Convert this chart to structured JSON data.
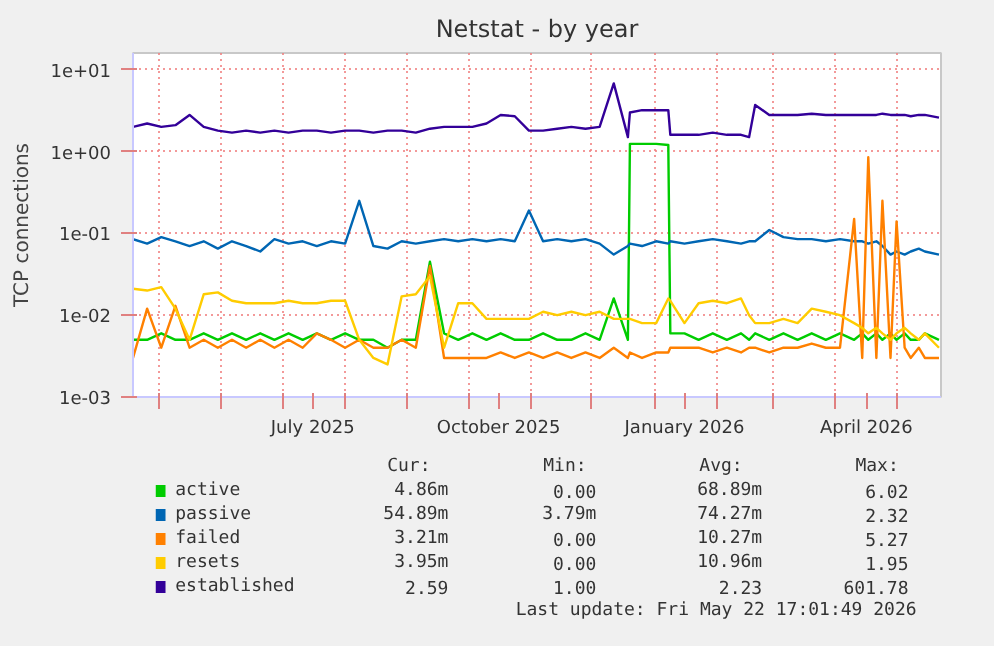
{
  "chart_data": {
    "type": "line",
    "title": "Netstat - by year",
    "ylabel": "TCP connections",
    "log": "y",
    "grid": true,
    "legend": "bottom",
    "x": [
      "2025-04-18",
      "2025-04-25",
      "2025-05-02",
      "2025-05-09",
      "2025-05-16",
      "2025-05-23",
      "2025-05-30",
      "2025-06-06",
      "2025-06-13",
      "2025-06-20",
      "2025-06-27",
      "2025-07-04",
      "2025-07-11",
      "2025-07-18",
      "2025-07-25",
      "2025-08-01",
      "2025-08-08",
      "2025-08-15",
      "2025-08-22",
      "2025-08-29",
      "2025-09-05",
      "2025-09-12",
      "2025-09-19",
      "2025-09-26",
      "2025-10-03",
      "2025-10-10",
      "2025-10-17",
      "2025-10-24",
      "2025-10-31",
      "2025-11-07",
      "2025-11-14",
      "2025-11-21",
      "2025-11-28",
      "2025-12-05",
      "2025-12-12",
      "2025-12-19",
      "2025-12-20",
      "2025-12-26",
      "2026-01-02",
      "2026-01-08",
      "2026-01-09",
      "2026-01-16",
      "2026-01-23",
      "2026-01-30",
      "2026-02-06",
      "2026-02-13",
      "2026-02-17",
      "2026-02-20",
      "2026-02-27",
      "2026-03-06",
      "2026-03-13",
      "2026-03-20",
      "2026-03-27",
      "2026-04-03",
      "2026-04-10",
      "2026-04-14",
      "2026-04-17",
      "2026-04-21",
      "2026-04-24",
      "2026-04-28",
      "2026-05-01",
      "2026-05-05",
      "2026-05-08",
      "2026-05-12",
      "2026-05-15",
      "2026-05-22"
    ],
    "series": [
      {
        "name": "active",
        "color": "#00cc00",
        "values": [
          0.005,
          0.005,
          0.006,
          0.005,
          0.005,
          0.006,
          0.005,
          0.006,
          0.005,
          0.006,
          0.005,
          0.006,
          0.005,
          0.006,
          0.005,
          0.006,
          0.005,
          0.005,
          0.004,
          0.005,
          0.005,
          0.045,
          0.006,
          0.005,
          0.006,
          0.005,
          0.006,
          0.005,
          0.005,
          0.006,
          0.005,
          0.005,
          0.006,
          0.005,
          0.016,
          0.005,
          1.24,
          1.24,
          1.24,
          1.2,
          0.006,
          0.006,
          0.005,
          0.006,
          0.005,
          0.006,
          0.005,
          0.006,
          0.005,
          0.006,
          0.005,
          0.006,
          0.005,
          0.006,
          0.005,
          0.006,
          0.005,
          0.006,
          0.005,
          0.006,
          0.005,
          0.006,
          0.005,
          0.005,
          0.006,
          0.005
        ]
      },
      {
        "name": "passive",
        "color": "#0066b3",
        "values": [
          0.085,
          0.075,
          0.09,
          0.08,
          0.07,
          0.08,
          0.065,
          0.08,
          0.07,
          0.06,
          0.085,
          0.075,
          0.08,
          0.07,
          0.08,
          0.075,
          0.25,
          0.07,
          0.065,
          0.08,
          0.075,
          0.08,
          0.085,
          0.08,
          0.085,
          0.08,
          0.085,
          0.08,
          0.19,
          0.08,
          0.085,
          0.08,
          0.085,
          0.075,
          0.055,
          0.07,
          0.075,
          0.07,
          0.08,
          0.075,
          0.08,
          0.075,
          0.08,
          0.085,
          0.08,
          0.075,
          0.08,
          0.08,
          0.11,
          0.09,
          0.085,
          0.085,
          0.08,
          0.085,
          0.08,
          0.08,
          0.075,
          0.08,
          0.07,
          0.055,
          0.06,
          0.055,
          0.06,
          0.065,
          0.06,
          0.055
        ]
      },
      {
        "name": "failed",
        "color": "#ff8000",
        "values": [
          0.003,
          0.012,
          0.004,
          0.013,
          0.004,
          0.005,
          0.004,
          0.005,
          0.004,
          0.005,
          0.004,
          0.005,
          0.004,
          0.006,
          0.005,
          0.004,
          0.005,
          0.004,
          0.004,
          0.005,
          0.004,
          0.04,
          0.003,
          0.003,
          0.003,
          0.003,
          0.0035,
          0.003,
          0.0035,
          0.003,
          0.0035,
          0.003,
          0.0035,
          0.003,
          0.004,
          0.003,
          0.0035,
          0.003,
          0.0035,
          0.0035,
          0.004,
          0.004,
          0.004,
          0.0035,
          0.004,
          0.0035,
          0.004,
          0.004,
          0.0035,
          0.004,
          0.004,
          0.0045,
          0.004,
          0.004,
          0.15,
          0.003,
          0.85,
          0.003,
          0.25,
          0.003,
          0.14,
          0.004,
          0.003,
          0.004,
          0.003,
          0.003
        ]
      },
      {
        "name": "resets",
        "color": "#ffcc00",
        "values": [
          0.021,
          0.02,
          0.022,
          0.012,
          0.005,
          0.018,
          0.019,
          0.015,
          0.014,
          0.014,
          0.014,
          0.015,
          0.014,
          0.014,
          0.015,
          0.015,
          0.005,
          0.003,
          0.0025,
          0.017,
          0.018,
          0.03,
          0.004,
          0.014,
          0.014,
          0.009,
          0.009,
          0.009,
          0.009,
          0.011,
          0.01,
          0.011,
          0.01,
          0.011,
          0.009,
          0.009,
          0.009,
          0.008,
          0.008,
          0.016,
          0.015,
          0.008,
          0.014,
          0.015,
          0.014,
          0.016,
          0.01,
          0.008,
          0.008,
          0.009,
          0.008,
          0.012,
          0.011,
          0.01,
          0.008,
          0.007,
          0.006,
          0.007,
          0.006,
          0.005,
          0.006,
          0.007,
          0.006,
          0.005,
          0.006,
          0.004
        ]
      },
      {
        "name": "established",
        "color": "#330099",
        "values": [
          2.0,
          2.2,
          2.0,
          2.1,
          2.8,
          2.0,
          1.8,
          1.7,
          1.8,
          1.7,
          1.8,
          1.7,
          1.8,
          1.8,
          1.7,
          1.8,
          1.8,
          1.7,
          1.8,
          1.8,
          1.7,
          1.9,
          2.0,
          2.0,
          2.0,
          2.2,
          2.8,
          2.7,
          1.8,
          1.8,
          1.9,
          2.0,
          1.9,
          2.0,
          6.8,
          1.5,
          3.0,
          3.2,
          3.2,
          3.2,
          1.6,
          1.6,
          1.6,
          1.7,
          1.6,
          1.6,
          1.5,
          3.7,
          2.8,
          2.8,
          2.8,
          2.9,
          2.8,
          2.8,
          2.8,
          2.8,
          2.8,
          2.8,
          2.9,
          2.8,
          2.8,
          2.8,
          2.7,
          2.8,
          2.8,
          2.6
        ]
      }
    ],
    "xlim": [
      "2025-04-18",
      "2026-05-23"
    ],
    "xticks": [
      {
        "value": "2025-05-01",
        "label": null
      },
      {
        "value": "2025-06-01",
        "label": null
      },
      {
        "value": "2025-07-01",
        "label": null
      },
      {
        "value": "2025-07-16",
        "label": "July 2025"
      },
      {
        "value": "2025-08-01",
        "label": null
      },
      {
        "value": "2025-09-01",
        "label": null
      },
      {
        "value": "2025-10-01",
        "label": null
      },
      {
        "value": "2025-10-16",
        "label": "October 2025"
      },
      {
        "value": "2025-11-01",
        "label": null
      },
      {
        "value": "2025-12-01",
        "label": null
      },
      {
        "value": "2026-01-01",
        "label": null
      },
      {
        "value": "2026-01-16",
        "label": "January 2026"
      },
      {
        "value": "2026-02-01",
        "label": null
      },
      {
        "value": "2026-03-01",
        "label": null
      },
      {
        "value": "2026-04-01",
        "label": null
      },
      {
        "value": "2026-04-16",
        "label": "April 2026"
      },
      {
        "value": "2026-05-01",
        "label": null
      }
    ],
    "ylim": [
      0.001,
      16
    ],
    "yticks": [
      {
        "value": 0.001,
        "label": "1e-03"
      },
      {
        "value": 0.01,
        "label": "1e-02"
      },
      {
        "value": 0.1,
        "label": "1e-01"
      },
      {
        "value": 1,
        "label": "1e+00"
      },
      {
        "value": 10,
        "label": "1e+01"
      }
    ],
    "annotations": [
      "Cur:",
      "Min:",
      "Avg:",
      "Max:",
      "4.86m",
      "0.00",
      "68.89m",
      "6.02",
      "54.89m",
      "3.79m",
      "74.27m",
      "2.32",
      "3.21m",
      "0.00",
      "10.27m",
      "5.27",
      "3.95m",
      "0.00",
      "10.96m",
      "1.95",
      "2.59",
      "1.00",
      "2.23",
      "601.78",
      "Last update: Fri May 22 17:01:49 2026"
    ]
  }
}
